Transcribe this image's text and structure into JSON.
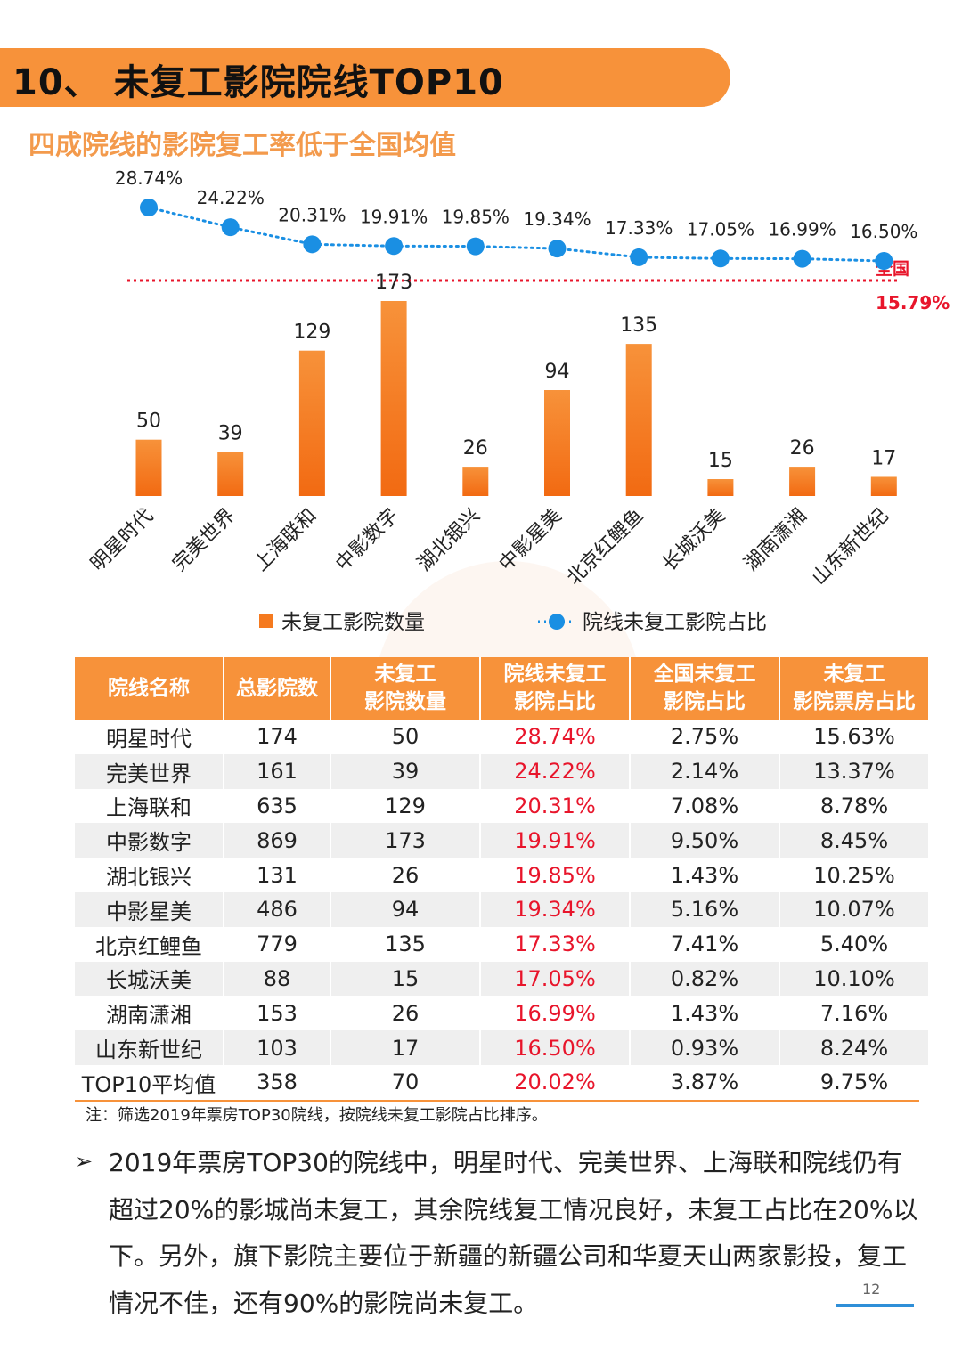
{
  "header": {
    "title": "10、 未复工影院院线TOP10",
    "subtitle": "四成院线的影院复工率低于全国均值"
  },
  "chart_data": {
    "type": "bar+line",
    "categories": [
      "明星时代",
      "完美世界",
      "上海联和",
      "中影数字",
      "湖北银兴",
      "中影星美",
      "北京红鲤鱼",
      "长城沃美",
      "湖南潇湘",
      "山东新世纪"
    ],
    "series": [
      {
        "name": "未复工影院数量",
        "type": "bar",
        "values": [
          50,
          39,
          129,
          173,
          26,
          94,
          135,
          15,
          26,
          17
        ]
      },
      {
        "name": "院线未复工影院占比",
        "type": "line",
        "values": [
          28.74,
          24.22,
          20.31,
          19.91,
          19.85,
          19.34,
          17.33,
          17.05,
          16.99,
          16.5
        ],
        "labels": [
          "28.74%",
          "24.22%",
          "20.31%",
          "19.91%",
          "19.85%",
          "19.34%",
          "17.33%",
          "17.05%",
          "16.99%",
          "16.50%"
        ]
      }
    ],
    "reference_line": {
      "label": "全国",
      "value": 15.79,
      "value_label": "15.79%"
    },
    "legend": [
      "未复工影院数量",
      "院线未复工影院占比"
    ],
    "colors": {
      "bar": "#f57a1f",
      "line": "#1a8fe3",
      "reference": "#e8152b"
    }
  },
  "table": {
    "headers": [
      "院线名称",
      "总影院数",
      "未复工\n影院数量",
      "院线未复工\n影院占比",
      "全国未复工\n影院占比",
      "未复工\n影院票房占比"
    ],
    "rows": [
      [
        "明星时代",
        "174",
        "50",
        "28.74%",
        "2.75%",
        "15.63%"
      ],
      [
        "完美世界",
        "161",
        "39",
        "24.22%",
        "2.14%",
        "13.37%"
      ],
      [
        "上海联和",
        "635",
        "129",
        "20.31%",
        "7.08%",
        "8.78%"
      ],
      [
        "中影数字",
        "869",
        "173",
        "19.91%",
        "9.50%",
        "8.45%"
      ],
      [
        "湖北银兴",
        "131",
        "26",
        "19.85%",
        "1.43%",
        "10.25%"
      ],
      [
        "中影星美",
        "486",
        "94",
        "19.34%",
        "5.16%",
        "10.07%"
      ],
      [
        "北京红鲤鱼",
        "779",
        "135",
        "17.33%",
        "7.41%",
        "5.40%"
      ],
      [
        "长城沃美",
        "88",
        "15",
        "17.05%",
        "0.82%",
        "10.10%"
      ],
      [
        "湖南潇湘",
        "153",
        "26",
        "16.99%",
        "1.43%",
        "7.16%"
      ],
      [
        "山东新世纪",
        "103",
        "17",
        "16.50%",
        "0.93%",
        "8.24%"
      ],
      [
        "TOP10平均值",
        "358",
        "70",
        "20.02%",
        "3.87%",
        "9.75%"
      ]
    ],
    "note": "注：筛选2019年票房TOP30院线，按院线未复工影院占比排序。"
  },
  "body": {
    "bullet": "➢",
    "paragraph": "2019年票房TOP30的院线中，明星时代、完美世界、上海联和院线仍有超过20%的影城尚未复工，其余院线复工情况良好，未复工占比在20%以下。另外，旗下影院主要位于新疆的新疆公司和华夏天山两家影投，复工情况不佳，还有90%的影院尚未复工。"
  },
  "footer": {
    "page_number": "12"
  },
  "colors": {
    "accent": "#f7923a",
    "subtitle": "#f39a4c",
    "red": "#e8152b",
    "blue": "#1a8fe3"
  }
}
